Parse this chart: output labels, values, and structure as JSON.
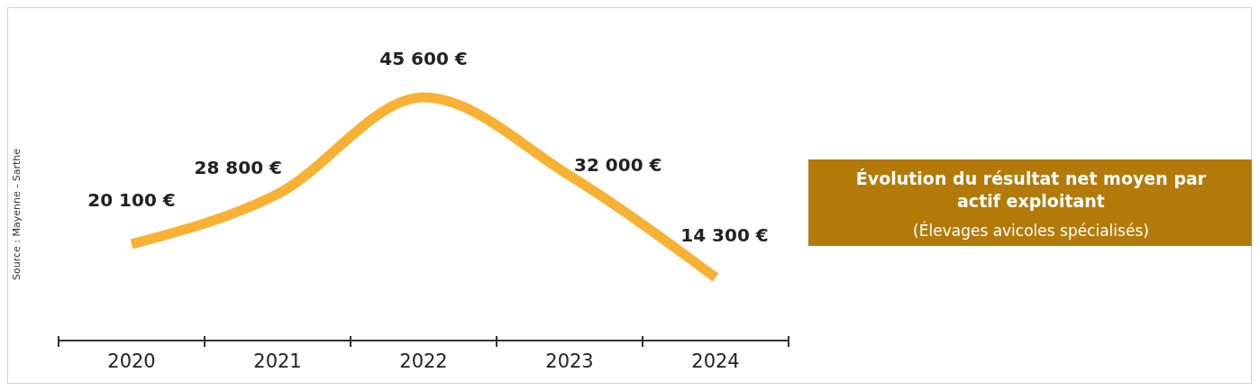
{
  "chart_data": {
    "type": "line",
    "title": "Évolution du résultat net moyen par actif exploitant",
    "subtitle": "(Élevages avicoles spécialisés)",
    "categories": [
      "2020",
      "2021",
      "2022",
      "2023",
      "2024"
    ],
    "series": [
      {
        "color": "#f8b133",
        "values": [
          20100,
          28800,
          45600,
          32000,
          14300
        ],
        "value_labels": [
          "20 100 €",
          "28 800 €",
          "45 600 €",
          "32 000 €",
          "14 300 €"
        ]
      }
    ],
    "annotations": [
      "Source : Mayenne - Sarthe"
    ],
    "marker": "none",
    "line_style": "solid"
  }
}
